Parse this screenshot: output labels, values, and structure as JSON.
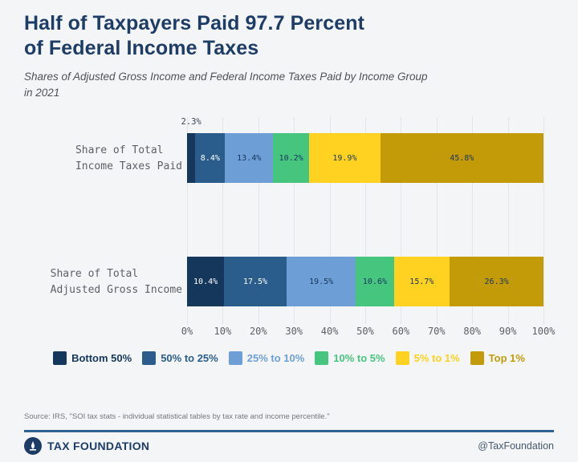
{
  "header": {
    "title_line1": "Half of Taxpayers Paid 97.7 Percent",
    "title_line2": "of Federal Income Taxes",
    "subtitle_line1": "Shares of Adjusted Gross Income and Federal Income Taxes Paid by Income Group",
    "subtitle_line2": "in 2021"
  },
  "chart_data": {
    "type": "bar",
    "orientation": "horizontal",
    "stacked": true,
    "xlim": [
      0,
      100
    ],
    "grid": true,
    "x_ticks": [
      "0%",
      "10%",
      "20%",
      "30%",
      "40%",
      "50%",
      "60%",
      "70%",
      "80%",
      "90%",
      "100%"
    ],
    "categories": [
      "Share of Total Income Taxes Paid",
      "Share of Total Adjusted Gross Income"
    ],
    "category_display_lines": [
      [
        "Share of Total",
        "Income Taxes Paid"
      ],
      [
        "Share of Total",
        "Adjusted Gross Income"
      ]
    ],
    "series": [
      {
        "name": "Bottom 50%",
        "color": "#16375c",
        "label_color": "#ffffff",
        "values": [
          2.3,
          10.4
        ]
      },
      {
        "name": "50% to 25%",
        "color": "#2a5d8c",
        "label_color": "#ffffff",
        "values": [
          8.4,
          17.5
        ]
      },
      {
        "name": "25% to 10%",
        "color": "#6d9ed6",
        "label_color": "#17365f",
        "values": [
          13.4,
          19.5
        ]
      },
      {
        "name": "10% to 5%",
        "color": "#46c57f",
        "label_color": "#17365f",
        "values": [
          10.2,
          10.6
        ]
      },
      {
        "name": "5% to 1%",
        "color": "#ffd120",
        "label_color": "#17365f",
        "values": [
          19.9,
          15.7
        ]
      },
      {
        "name": "Top 1%",
        "color": "#c39b09",
        "label_color": "#17365f",
        "values": [
          45.8,
          26.3
        ]
      }
    ],
    "legend_position": "bottom"
  },
  "footer": {
    "source": "Source: IRS, \"SOI tax stats - individual statistical tables by tax rate and income percentile.\"",
    "brand": "TAX FOUNDATION",
    "handle": "@TaxFoundation"
  },
  "colors": {
    "background": "#f4f5f7",
    "title": "#1d3c66",
    "subtitle": "#4d5359",
    "gridline": "#e2e4e8",
    "axis_text": "#5c6167",
    "outside_label": "#3a4654",
    "footer_rule": "#2f6092"
  }
}
